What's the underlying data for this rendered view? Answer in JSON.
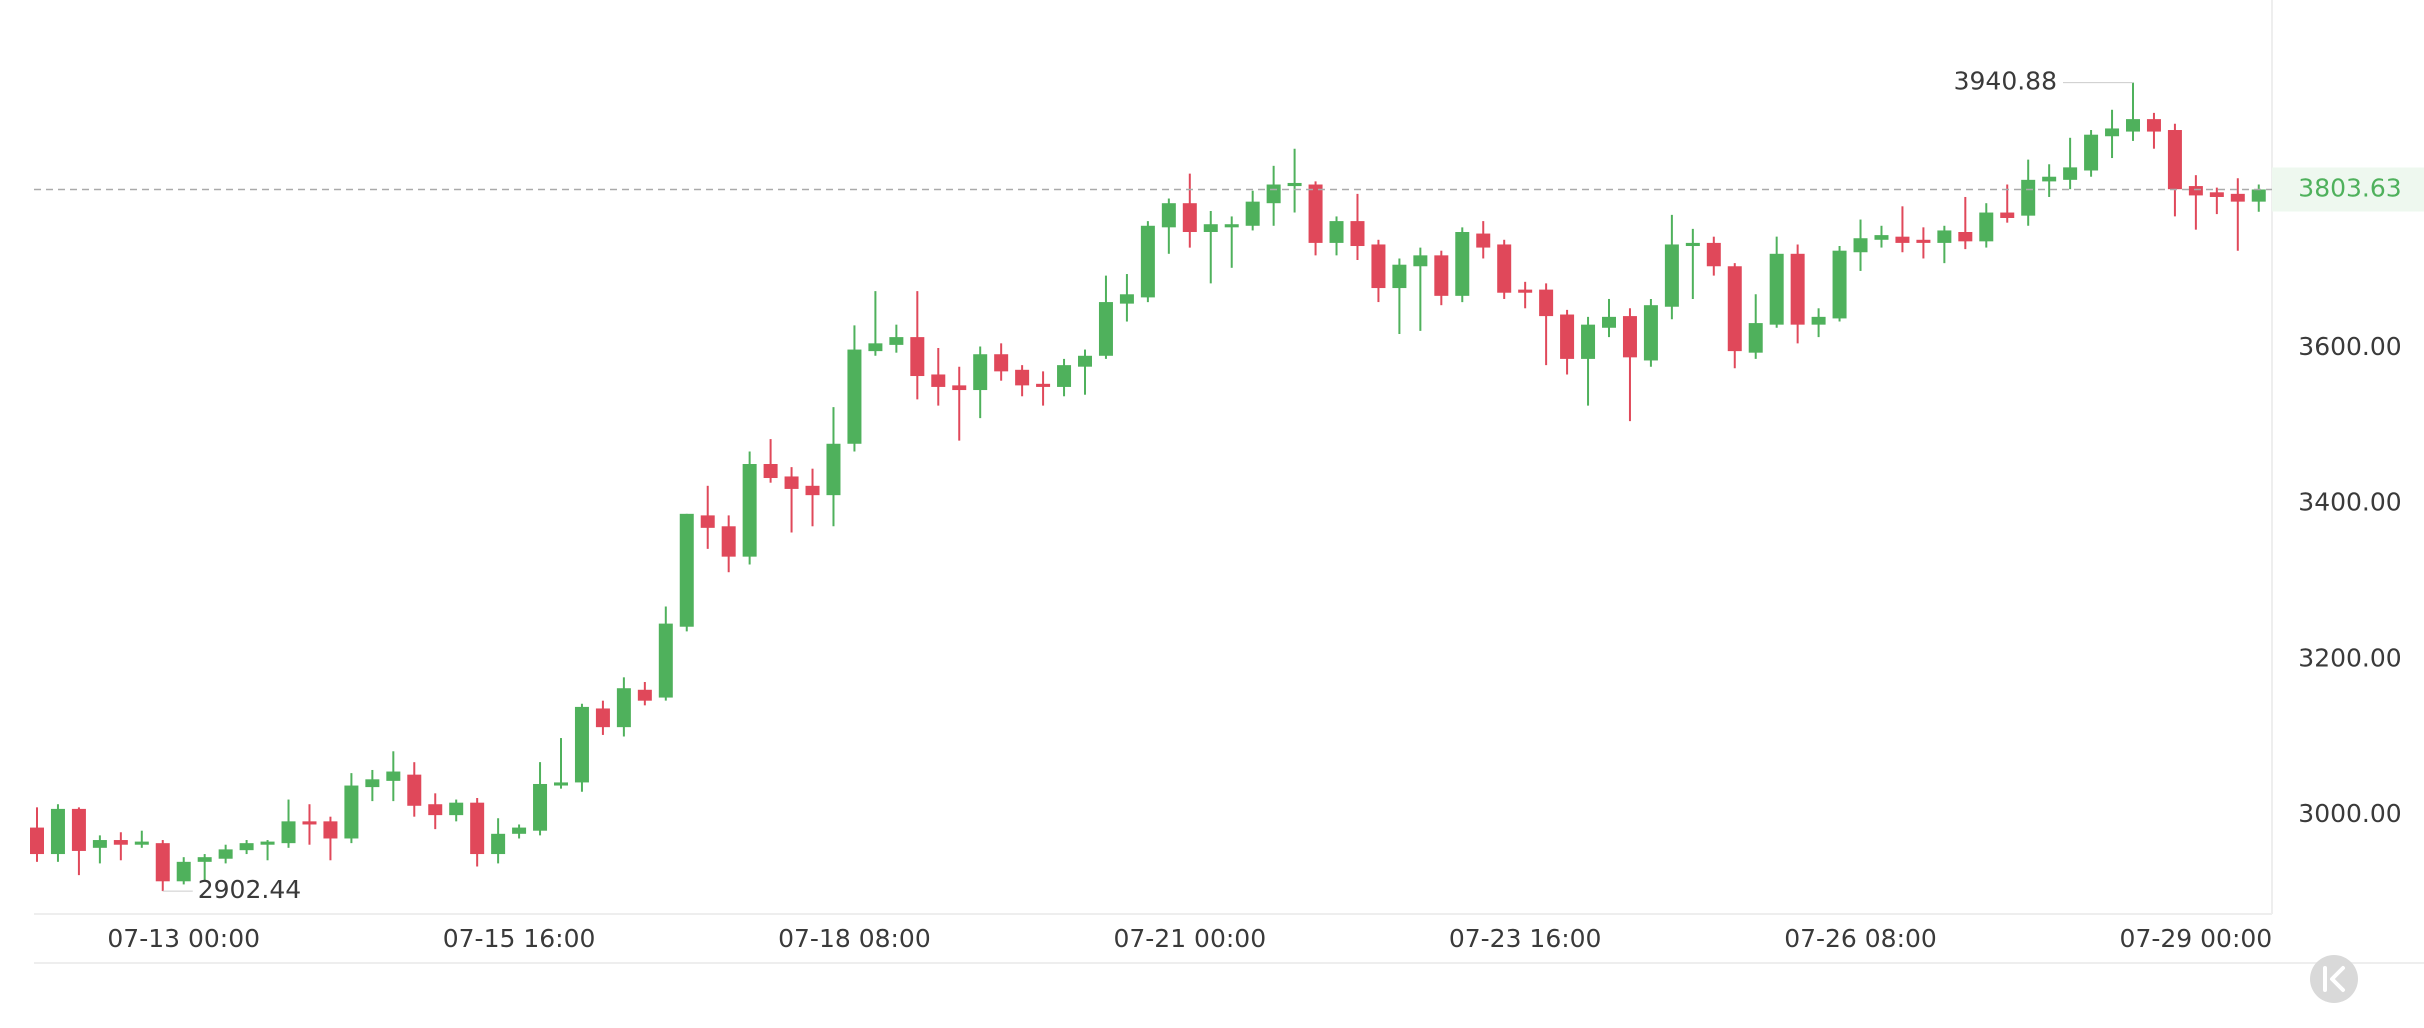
{
  "chart_data": {
    "type": "candlestick",
    "categories": [
      null,
      null,
      null,
      null,
      null,
      null,
      null,
      "07-13 00:00",
      null,
      null,
      null,
      null,
      null,
      null,
      null,
      null,
      null,
      null,
      null,
      null,
      null,
      null,
      null,
      "07-15 16:00",
      null,
      null,
      null,
      null,
      null,
      null,
      null,
      null,
      null,
      null,
      null,
      null,
      null,
      null,
      null,
      "07-18 08:00",
      null,
      null,
      null,
      null,
      null,
      null,
      null,
      null,
      null,
      null,
      null,
      null,
      null,
      null,
      null,
      "07-21 00:00",
      null,
      null,
      null,
      null,
      null,
      null,
      null,
      null,
      null,
      null,
      null,
      null,
      null,
      null,
      null,
      "07-23 16:00",
      null,
      null,
      null,
      null,
      null,
      null,
      null,
      null,
      null,
      null,
      null,
      null,
      null,
      null,
      null,
      "07-26 08:00",
      null,
      null,
      null,
      null,
      null,
      null,
      null,
      null,
      null,
      null,
      null,
      null,
      null,
      null,
      null,
      "07-29 00:00",
      null,
      null,
      null
    ],
    "open": [
      2984,
      2950,
      3008,
      2958,
      2968,
      2962,
      2964,
      2915,
      2940,
      2944,
      2955,
      2962,
      2964,
      2992,
      2992,
      2970,
      3036,
      3044,
      3052,
      3014,
      3000,
      3016,
      2950,
      2976,
      2980,
      3038,
      3042,
      3137,
      3113,
      3161,
      3151,
      3242,
      3385,
      3371,
      3332,
      3451,
      3435,
      3423,
      3411,
      3477,
      3596,
      3604,
      3614,
      3566,
      3552,
      3546,
      3592,
      3572,
      3554,
      3550,
      3576,
      3590,
      3657,
      3665,
      3755,
      3786,
      3749,
      3755,
      3757,
      3786,
      3808,
      3810,
      3735,
      3763,
      3733,
      3677,
      3705,
      3719,
      3667,
      3747,
      3733,
      3675,
      3675,
      3643,
      3586,
      3626,
      3641,
      3584,
      3653,
      3731,
      3735,
      3705,
      3594,
      3630,
      3721,
      3630,
      3638,
      3723,
      3739,
      3743,
      3739,
      3735,
      3749,
      3737,
      3774,
      3770,
      3814,
      3816,
      3828,
      3872,
      3878,
      3894,
      3880,
      3808,
      3800,
      3798,
      3788
    ],
    "high": [
      3010,
      3014,
      3010,
      2974,
      2978,
      2980,
      2968,
      2946,
      2950,
      2962,
      2968,
      2968,
      3020,
      3014,
      2998,
      3054,
      3058,
      3082,
      3068,
      3028,
      3020,
      3022,
      2996,
      2988,
      3068,
      3099,
      3143,
      3147,
      3177,
      3171,
      3268,
      3387,
      3423,
      3385,
      3467,
      3483,
      3447,
      3445,
      3524,
      3629,
      3673,
      3630,
      3673,
      3600,
      3576,
      3602,
      3606,
      3578,
      3570,
      3586,
      3598,
      3693,
      3695,
      3763,
      3792,
      3824,
      3776,
      3769,
      3802,
      3834,
      3856,
      3814,
      3769,
      3798,
      3739,
      3715,
      3729,
      3725,
      3755,
      3763,
      3739,
      3685,
      3683,
      3649,
      3640,
      3663,
      3651,
      3663,
      3771,
      3753,
      3743,
      3709,
      3669,
      3743,
      3733,
      3651,
      3731,
      3765,
      3757,
      3782,
      3755,
      3757,
      3794,
      3786,
      3810,
      3842,
      3836,
      3870,
      3880,
      3906,
      3940.88,
      3902,
      3888,
      3822,
      3806,
      3818,
      3810
    ],
    "low": [
      2940,
      2940,
      2923,
      2938,
      2942,
      2958,
      2902.44,
      2911,
      2915,
      2938,
      2950,
      2942,
      2958,
      2962,
      2942,
      2964,
      3018,
      3018,
      2998,
      2982,
      2992,
      2934,
      2938,
      2970,
      2974,
      3034,
      3030,
      3103,
      3101,
      3141,
      3147,
      3236,
      3342,
      3312,
      3322,
      3427,
      3363,
      3371,
      3371,
      3467,
      3590,
      3594,
      3534,
      3526,
      3481,
      3510,
      3558,
      3538,
      3526,
      3538,
      3540,
      3586,
      3634,
      3659,
      3721,
      3729,
      3683,
      3703,
      3751,
      3757,
      3774,
      3719,
      3719,
      3713,
      3659,
      3618,
      3622,
      3655,
      3659,
      3715,
      3663,
      3651,
      3578,
      3566,
      3526,
      3614,
      3506,
      3576,
      3637,
      3663,
      3693,
      3574,
      3586,
      3626,
      3606,
      3614,
      3634,
      3699,
      3729,
      3723,
      3715,
      3709,
      3727,
      3729,
      3761,
      3757,
      3794,
      3804,
      3820,
      3844,
      3866,
      3856,
      3769,
      3752,
      3772,
      3725,
      3775
    ],
    "close": [
      2950,
      3008,
      2954,
      2968,
      2962,
      2966,
      2915,
      2940,
      2946,
      2956,
      2964,
      2966,
      2992,
      2988,
      2970,
      3038,
      3046,
      3056,
      3012,
      3000,
      3016,
      2950,
      2976,
      2984,
      3040,
      3042,
      3139,
      3113,
      3163,
      3147,
      3246,
      3387,
      3369,
      3332,
      3451,
      3433,
      3419,
      3411,
      3477,
      3598,
      3606,
      3614,
      3564,
      3550,
      3546,
      3592,
      3570,
      3552,
      3550,
      3578,
      3590,
      3659,
      3669,
      3757,
      3786,
      3749,
      3759,
      3759,
      3788,
      3810,
      3812,
      3735,
      3763,
      3731,
      3677,
      3707,
      3719,
      3667,
      3749,
      3729,
      3671,
      3671,
      3641,
      3586,
      3630,
      3640,
      3588,
      3655,
      3733,
      3735,
      3705,
      3596,
      3632,
      3721,
      3630,
      3640,
      3725,
      3741,
      3745,
      3735,
      3735,
      3751,
      3737,
      3774,
      3767,
      3816,
      3820,
      3832,
      3874,
      3882,
      3894,
      3878,
      3804,
      3796,
      3794,
      3788,
      3803.63
    ],
    "up_color": "#4fb15c",
    "down_color": "#e0485a",
    "ylim": [
      2873,
      4047
    ],
    "yticks": [
      {
        "value": 3000,
        "label": "3000.00"
      },
      {
        "value": 3200,
        "label": "3200.00"
      },
      {
        "value": 3400,
        "label": "3400.00"
      },
      {
        "value": 3600,
        "label": "3600.00"
      }
    ],
    "y_axis_side": "right",
    "grid": false
  }
}
